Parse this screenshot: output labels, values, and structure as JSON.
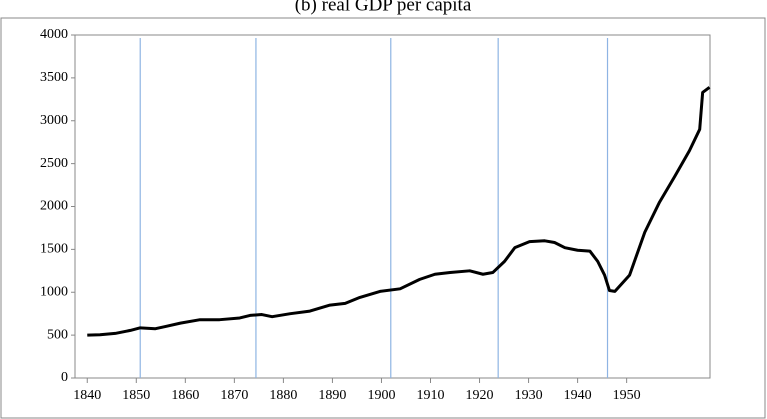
{
  "chart_data": {
    "type": "line",
    "title": "(b) real GDP per capita",
    "x": [
      1840,
      1842.6,
      1845.7,
      1848.8,
      1850.8,
      1853.9,
      1855.9,
      1859,
      1863,
      1867,
      1871.1,
      1873.2,
      1875.6,
      1877.7,
      1881.4,
      1885.4,
      1889.5,
      1892.6,
      1895.6,
      1899.7,
      1903.8,
      1907.8,
      1910.9,
      1914,
      1918,
      1920.7,
      1922.7,
      1925.1,
      1927.2,
      1930.2,
      1933.3,
      1935.3,
      1937.4,
      1940,
      1942.5,
      1944.1,
      1945.5,
      1946.5,
      1947.6,
      1950.6,
      1953.7,
      1956.7,
      1959.8,
      1962.8,
      1964.9,
      1965.5,
      1966.9
    ],
    "values": [
      500,
      505,
      520,
      555,
      585,
      575,
      600,
      640,
      680,
      680,
      700,
      730,
      740,
      715,
      750,
      780,
      850,
      870,
      940,
      1010,
      1040,
      1150,
      1210,
      1230,
      1250,
      1210,
      1230,
      1360,
      1520,
      1590,
      1600,
      1580,
      1520,
      1490,
      1480,
      1360,
      1200,
      1020,
      1010,
      1200,
      1700,
      2050,
      2350,
      2650,
      2900,
      3330,
      3390
    ],
    "color": "#000000",
    "vlines": [
      1850.8,
      1874.4,
      1901.9,
      1923.8,
      1946.1
    ],
    "vline_color": "#8eb4e3",
    "xlim": [
      1837.5,
      1967
    ],
    "xticks": [
      1840,
      1850,
      1860,
      1870,
      1880,
      1890,
      1900,
      1910,
      1920,
      1930,
      1940,
      1950
    ],
    "ylim": [
      0,
      4000
    ],
    "yticks": [
      0,
      500,
      1000,
      1500,
      2000,
      2500,
      3000,
      3500,
      4000
    ]
  }
}
